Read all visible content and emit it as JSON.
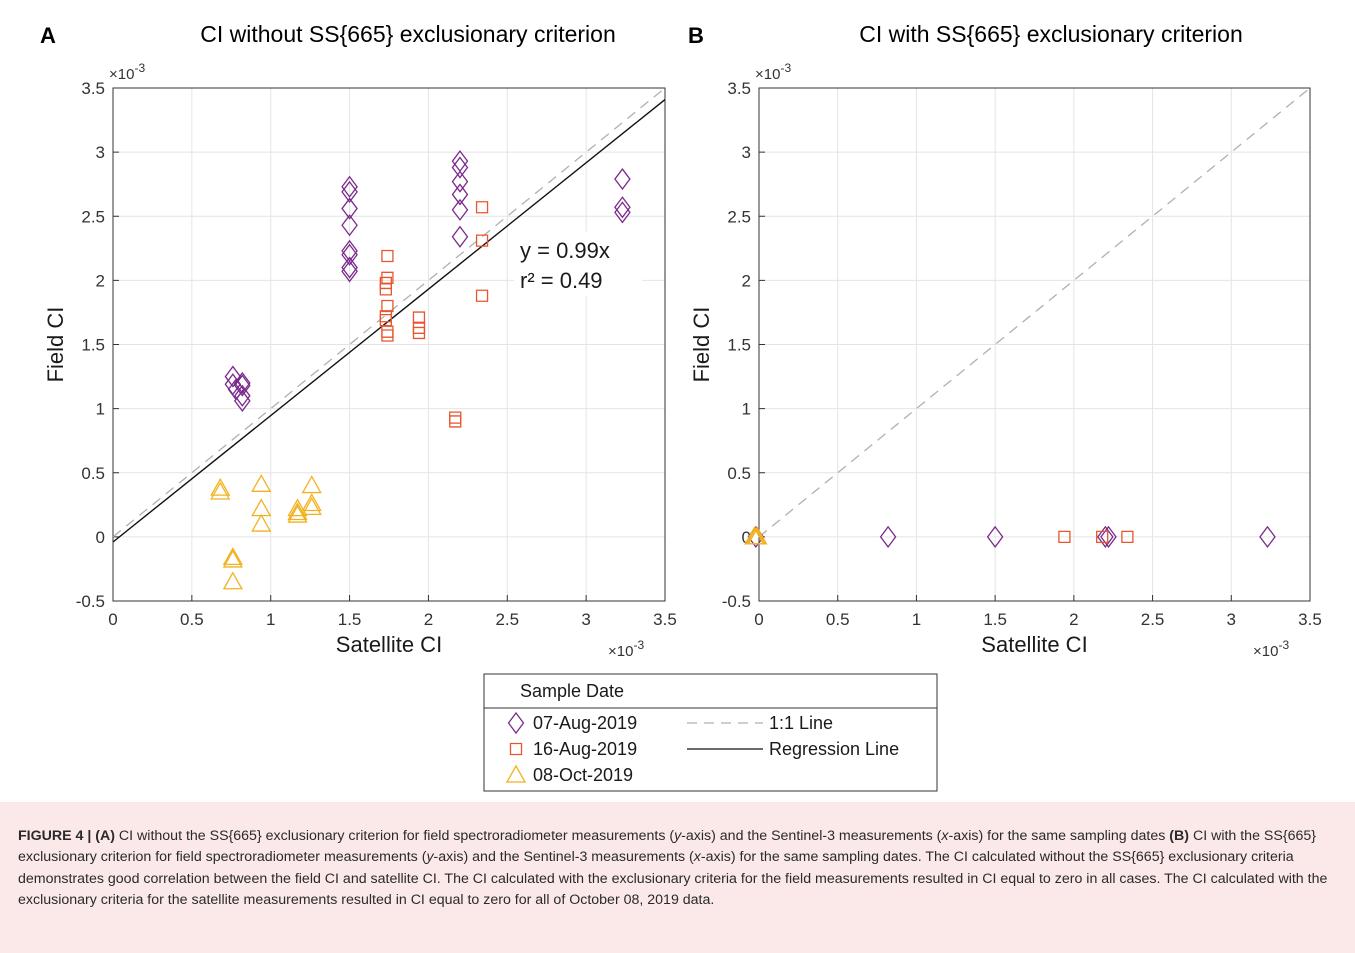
{
  "chart_data": [
    {
      "type": "scatter",
      "panel": "A",
      "title": "CI without SS{665} exclusionary criterion",
      "xlabel": "Satellite CI",
      "ylabel": "Field CI",
      "x_multiplier": "×10-3",
      "y_multiplier": "×10-3",
      "xlim": [
        0,
        3.5
      ],
      "ylim": [
        -0.5,
        3.5
      ],
      "xticks": [
        "0",
        "0.5",
        "1",
        "1.5",
        "2",
        "2.5",
        "3",
        "3.5"
      ],
      "yticks": [
        "-0.5",
        "0",
        "0.5",
        "1",
        "1.5",
        "2",
        "2.5",
        "3",
        "3.5"
      ],
      "grid": true,
      "annotation": {
        "equation": "y = 0.99x",
        "r2": "r² = 0.49"
      },
      "lines": [
        {
          "name": "1:1 Line",
          "style": "dashed",
          "color": "#b0b0b0",
          "x": [
            0,
            3.5
          ],
          "y": [
            0,
            3.5
          ]
        },
        {
          "name": "Regression Line",
          "style": "solid",
          "color": "#111111",
          "x": [
            0,
            3.5
          ],
          "y": [
            -0.04,
            3.41
          ]
        }
      ],
      "series": [
        {
          "name": "07-Aug-2019",
          "marker": "diamond",
          "color": "#7b2a8c",
          "points": [
            [
              0.76,
              1.25
            ],
            [
              0.76,
              1.19
            ],
            [
              0.78,
              1.15
            ],
            [
              0.82,
              1.2
            ],
            [
              0.82,
              1.18
            ],
            [
              0.82,
              1.1
            ],
            [
              0.82,
              1.06
            ],
            [
              1.5,
              2.73
            ],
            [
              1.5,
              2.69
            ],
            [
              1.5,
              2.56
            ],
            [
              1.5,
              2.43
            ],
            [
              1.5,
              2.23
            ],
            [
              1.5,
              2.2
            ],
            [
              1.5,
              2.1
            ],
            [
              1.5,
              2.07
            ],
            [
              2.2,
              2.93
            ],
            [
              2.2,
              2.88
            ],
            [
              2.2,
              2.77
            ],
            [
              2.2,
              2.67
            ],
            [
              2.2,
              2.55
            ],
            [
              2.2,
              2.34
            ],
            [
              3.23,
              2.79
            ],
            [
              3.23,
              2.57
            ],
            [
              3.23,
              2.53
            ]
          ]
        },
        {
          "name": "16-Aug-2019",
          "marker": "square",
          "color": "#e8552f",
          "points": [
            [
              1.74,
              2.19
            ],
            [
              1.74,
              2.02
            ],
            [
              1.73,
              1.98
            ],
            [
              1.73,
              1.93
            ],
            [
              1.74,
              1.8
            ],
            [
              1.73,
              1.72
            ],
            [
              1.73,
              1.69
            ],
            [
              1.74,
              1.6
            ],
            [
              1.74,
              1.57
            ],
            [
              1.94,
              1.71
            ],
            [
              1.94,
              1.63
            ],
            [
              1.94,
              1.59
            ],
            [
              2.17,
              0.93
            ],
            [
              2.17,
              0.9
            ],
            [
              2.34,
              2.57
            ],
            [
              2.34,
              2.31
            ],
            [
              2.34,
              1.88
            ]
          ]
        },
        {
          "name": "08-Oct-2019",
          "marker": "triangle",
          "color": "#f2b21f",
          "points": [
            [
              0.68,
              0.38
            ],
            [
              0.68,
              0.35
            ],
            [
              0.76,
              -0.16
            ],
            [
              0.76,
              -0.18
            ],
            [
              0.76,
              -0.35
            ],
            [
              0.94,
              0.41
            ],
            [
              0.94,
              0.22
            ],
            [
              0.94,
              0.1
            ],
            [
              1.17,
              0.22
            ],
            [
              1.17,
              0.19
            ],
            [
              1.17,
              0.17
            ],
            [
              1.26,
              0.4
            ],
            [
              1.26,
              0.26
            ],
            [
              1.26,
              0.23
            ]
          ]
        }
      ]
    },
    {
      "type": "scatter",
      "panel": "B",
      "title": "CI with SS{665} exclusionary criterion",
      "xlabel": "Satellite CI",
      "ylabel": "Field CI",
      "x_multiplier": "×10-3",
      "y_multiplier": "×10-3",
      "xlim": [
        0,
        3.5
      ],
      "ylim": [
        -0.5,
        3.5
      ],
      "xticks": [
        "0",
        "0.5",
        "1",
        "1.5",
        "2",
        "2.5",
        "3",
        "3.5"
      ],
      "yticks": [
        "-0.5",
        "0",
        "0.5",
        "1",
        "1.5",
        "2",
        "2.5",
        "3",
        "3.5"
      ],
      "grid": true,
      "lines": [
        {
          "name": "1:1 Line",
          "style": "dashed",
          "color": "#b0b0b0",
          "x": [
            0,
            3.5
          ],
          "y": [
            0,
            3.5
          ]
        }
      ],
      "series": [
        {
          "name": "07-Aug-2019",
          "marker": "diamond",
          "color": "#7b2a8c",
          "points": [
            [
              -0.02,
              0
            ],
            [
              0.82,
              0
            ],
            [
              1.5,
              0
            ],
            [
              2.2,
              0
            ],
            [
              2.22,
              0
            ],
            [
              3.23,
              0
            ]
          ]
        },
        {
          "name": "16-Aug-2019",
          "marker": "square",
          "color": "#e8552f",
          "points": [
            [
              1.94,
              0
            ],
            [
              2.18,
              0
            ],
            [
              2.34,
              0
            ]
          ]
        },
        {
          "name": "08-Oct-2019",
          "marker": "triangle",
          "color": "#f2b21f",
          "points": [
            [
              -0.03,
              0
            ],
            [
              -0.02,
              0
            ],
            [
              -0.01,
              0
            ]
          ]
        }
      ]
    }
  ],
  "legend": {
    "title": "Sample Date",
    "items": [
      {
        "label": "07-Aug-2019",
        "marker": "diamond",
        "color": "#7b2a8c"
      },
      {
        "label": "16-Aug-2019",
        "marker": "square",
        "color": "#e8552f"
      },
      {
        "label": "08-Oct-2019",
        "marker": "triangle",
        "color": "#f2b21f"
      },
      {
        "label": "1:1 Line",
        "line": "dashed",
        "color": "#b0b0b0"
      },
      {
        "label": "Regression Line",
        "line": "solid",
        "color": "#111111"
      }
    ]
  },
  "caption": {
    "lead": "FIGURE 4 | (A)",
    "t1": " CI without the SS{665} exclusionary criterion for field spectroradiometer measurements (",
    "y1": "y",
    "t2": "-axis) and the Sentinel-3 measurements (",
    "x1": "x",
    "t3": "-axis) for the same sampling dates ",
    "b_label": "(B)",
    "t4": " CI with the SS{665} exclusionary criterion for field spectroradiometer measurements (",
    "y2": "y",
    "t5": "-axis) and the Sentinel-3 measurements (",
    "x2": "x",
    "t6": "-axis) for the same sampling dates. The CI calculated without the SS{665} exclusionary criteria demonstrates good correlation between the field CI and satellite CI. The CI calculated with the exclusionary criteria for the field measurements resulted in CI equal to zero in all cases. The CI calculated with the exclusionary criteria for the satellite measurements resulted in CI equal to zero for all of October 08, 2019 data."
  },
  "colors": {
    "diamond": "#7b2a8c",
    "square": "#e8552f",
    "triangle": "#f2b21f",
    "grid": "#e4e4e4",
    "caption_band": "#fbe9e9"
  }
}
